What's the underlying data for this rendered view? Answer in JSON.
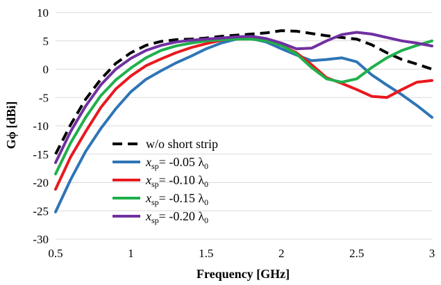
{
  "chart_data": {
    "type": "line",
    "xlabel": "Frequency [GHz]",
    "ylabel": "Gϕ [dBi]",
    "xlim": [
      0.5,
      3
    ],
    "ylim": [
      -30,
      10
    ],
    "xticks": [
      0.5,
      1,
      1.5,
      2,
      2.5,
      3
    ],
    "xtick_labels": [
      "0.5",
      "1",
      "1.5",
      "2",
      "2.5",
      "3"
    ],
    "yticks": [
      -30,
      -25,
      -20,
      -15,
      -10,
      -5,
      0,
      5,
      10
    ],
    "ytick_labels": [
      "-30",
      "-25",
      "-20",
      "-15",
      "-10",
      "-5",
      "0",
      "5",
      "10"
    ],
    "grid": "horizontal",
    "legend_position": "lower-left",
    "series": [
      {
        "name": "w/o short strip",
        "legend_label": {
          "var": "",
          "sub": "",
          "mid": "",
          "lam": "",
          "plain": "w/o short strip"
        },
        "color": "#000000",
        "dash": true,
        "x": [
          0.5,
          0.6,
          0.7,
          0.8,
          0.9,
          1.0,
          1.1,
          1.2,
          1.3,
          1.4,
          1.5,
          1.6,
          1.7,
          1.8,
          1.9,
          2.0,
          2.1,
          2.2,
          2.3,
          2.4,
          2.5,
          2.6,
          2.7,
          2.8,
          2.9,
          3.0
        ],
        "y": [
          -15,
          -9.8,
          -5.3,
          -1.8,
          1,
          2.9,
          4.2,
          4.9,
          5.2,
          5.3,
          5.5,
          5.8,
          6.0,
          6.2,
          6.4,
          6.8,
          6.7,
          6.3,
          5.9,
          5.6,
          5.3,
          4.3,
          2.9,
          1.7,
          0.9,
          0.0
        ]
      },
      {
        "name": "xsp= -0.05 λ0",
        "legend_label": {
          "var": "x",
          "sub": "sp",
          "mid": "= -0.05 λ",
          "lam": "0",
          "plain": ""
        },
        "color": "#2e75b6",
        "dash": false,
        "x": [
          0.5,
          0.6,
          0.7,
          0.8,
          0.9,
          1.0,
          1.1,
          1.2,
          1.3,
          1.4,
          1.5,
          1.6,
          1.7,
          1.8,
          1.9,
          2.0,
          2.1,
          2.2,
          2.3,
          2.4,
          2.5,
          2.6,
          2.7,
          2.8,
          2.9,
          3.0
        ],
        "y": [
          -25.2,
          -19.5,
          -14.5,
          -10.5,
          -7.0,
          -4.0,
          -1.8,
          -0.3,
          1.1,
          2.3,
          3.6,
          4.6,
          5.3,
          5.4,
          4.8,
          3.6,
          2.5,
          1.5,
          1.7,
          2.0,
          1.3,
          -1.0,
          -2.8,
          -4.5,
          -6.4,
          -8.5
        ]
      },
      {
        "name": "xsp= -0.10 λ0",
        "legend_label": {
          "var": "x",
          "sub": "sp",
          "mid": "= -0.10 λ",
          "lam": "0",
          "plain": ""
        },
        "color": "#e8191e",
        "dash": false,
        "x": [
          0.5,
          0.6,
          0.7,
          0.8,
          0.9,
          1.0,
          1.1,
          1.2,
          1.3,
          1.4,
          1.5,
          1.6,
          1.7,
          1.8,
          1.9,
          2.0,
          2.1,
          2.2,
          2.3,
          2.4,
          2.5,
          2.6,
          2.7,
          2.8,
          2.9,
          3.0
        ],
        "y": [
          -21.2,
          -15.5,
          -11.0,
          -6.8,
          -3.5,
          -1.2,
          0.6,
          1.8,
          2.9,
          3.8,
          4.5,
          5.1,
          5.5,
          5.6,
          5.0,
          4.2,
          2.9,
          0.8,
          -1.5,
          -2.5,
          -3.6,
          -4.8,
          -5.0,
          -3.6,
          -2.3,
          -2.0
        ]
      },
      {
        "name": "xsp= -0.15 λ0",
        "legend_label": {
          "var": "x",
          "sub": "sp",
          "mid": "= -0.15 λ",
          "lam": "0",
          "plain": ""
        },
        "color": "#1fb04b",
        "dash": false,
        "x": [
          0.5,
          0.6,
          0.7,
          0.8,
          0.9,
          1.0,
          1.1,
          1.2,
          1.3,
          1.4,
          1.5,
          1.6,
          1.7,
          1.8,
          1.9,
          2.0,
          2.1,
          2.2,
          2.3,
          2.4,
          2.5,
          2.6,
          2.7,
          2.8,
          2.9,
          3.0
        ],
        "y": [
          -18.5,
          -13.0,
          -8.5,
          -4.7,
          -1.9,
          0.2,
          2.0,
          3.3,
          4.1,
          4.6,
          5.0,
          5.2,
          5.3,
          5.3,
          5.0,
          4.2,
          2.7,
          0.3,
          -1.7,
          -2.3,
          -1.7,
          0.3,
          2.0,
          3.3,
          4.2,
          5.0
        ]
      },
      {
        "name": "xsp= -0.20 λ0",
        "legend_label": {
          "var": "x",
          "sub": "sp",
          "mid": "= -0.20 λ",
          "lam": "0",
          "plain": ""
        },
        "color": "#7030a0",
        "dash": false,
        "x": [
          0.5,
          0.6,
          0.7,
          0.8,
          0.9,
          1.0,
          1.1,
          1.2,
          1.3,
          1.4,
          1.5,
          1.6,
          1.7,
          1.8,
          1.9,
          2.0,
          2.1,
          2.2,
          2.3,
          2.4,
          2.5,
          2.6,
          2.7,
          2.8,
          2.9,
          3.0
        ],
        "y": [
          -16.5,
          -11.0,
          -6.5,
          -2.8,
          0.0,
          1.9,
          3.3,
          4.2,
          4.8,
          5.1,
          5.3,
          5.5,
          5.7,
          5.8,
          5.4,
          4.6,
          3.6,
          3.7,
          5.0,
          6.1,
          6.5,
          6.2,
          5.6,
          5.0,
          4.6,
          4.1
        ]
      }
    ]
  }
}
